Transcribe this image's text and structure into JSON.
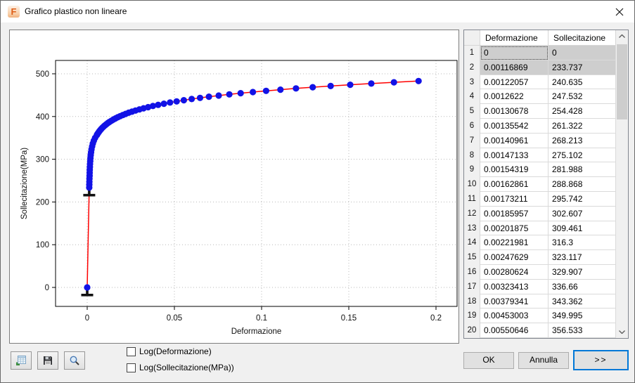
{
  "window": {
    "title": "Grafico plastico non lineare",
    "app_icon_glyph": "F"
  },
  "chart_data": {
    "type": "line",
    "title": "",
    "xlabel": "Deformazione",
    "ylabel": "Sollecitazione(MPa)",
    "x_ticks": [
      0,
      0.05,
      0.1,
      0.15,
      0.2
    ],
    "y_ticks": [
      0,
      100,
      200,
      300,
      400,
      500
    ],
    "xlim": [
      -0.018,
      0.212
    ],
    "ylim": [
      -44,
      531
    ],
    "grid": true,
    "legend": false,
    "line_color": "#ff0000",
    "marker_color": "#1212e6",
    "selected_marker_color": "#111111",
    "points": [
      [
        0,
        0
      ],
      [
        0.00116869,
        233.737
      ],
      [
        0.00122057,
        240.635
      ],
      [
        0.0012622,
        247.532
      ],
      [
        0.00130678,
        254.428
      ],
      [
        0.00135542,
        261.322
      ],
      [
        0.00140961,
        268.213
      ],
      [
        0.00147133,
        275.102
      ],
      [
        0.00154319,
        281.988
      ],
      [
        0.00162861,
        288.868
      ],
      [
        0.00173211,
        295.742
      ],
      [
        0.00185957,
        302.607
      ],
      [
        0.00201875,
        309.461
      ],
      [
        0.00221981,
        316.3
      ],
      [
        0.00247629,
        323.117
      ],
      [
        0.00280624,
        329.907
      ],
      [
        0.00323413,
        336.66
      ],
      [
        0.00379341,
        343.362
      ],
      [
        0.00453003,
        349.995
      ],
      [
        0.00550646,
        356.533
      ],
      [
        0.0059,
        359.2
      ],
      [
        0.0064,
        362.3
      ],
      [
        0.0069,
        365.2
      ],
      [
        0.0075,
        368.3
      ],
      [
        0.0081,
        371.1
      ],
      [
        0.0087,
        373.7
      ],
      [
        0.0094,
        376.5
      ],
      [
        0.0102,
        379.3
      ],
      [
        0.011,
        382
      ],
      [
        0.0119,
        384.8
      ],
      [
        0.0128,
        387.3
      ],
      [
        0.0139,
        390.2
      ],
      [
        0.015,
        392.9
      ],
      [
        0.0162,
        395.5
      ],
      [
        0.0175,
        398.2
      ],
      [
        0.0189,
        400.8
      ],
      [
        0.0204,
        403.5
      ],
      [
        0.022,
        406.1
      ],
      [
        0.0238,
        408.8
      ],
      [
        0.0257,
        411.4
      ],
      [
        0.0277,
        414
      ],
      [
        0.0299,
        416.6
      ],
      [
        0.0323,
        419.3
      ],
      [
        0.0349,
        421.9
      ],
      [
        0.0377,
        424.6
      ],
      [
        0.0407,
        427.3
      ],
      [
        0.044,
        430
      ],
      [
        0.0475,
        432.7
      ],
      [
        0.0513,
        435.4
      ],
      [
        0.0554,
        438.1
      ],
      [
        0.0599,
        440.9
      ],
      [
        0.0647,
        443.6
      ],
      [
        0.0698,
        446.3
      ],
      [
        0.0754,
        449
      ],
      [
        0.0815,
        451.8
      ],
      [
        0.088,
        454.6
      ],
      [
        0.095,
        457.3
      ],
      [
        0.1026,
        460.1
      ],
      [
        0.1108,
        462.9
      ],
      [
        0.1197,
        465.8
      ],
      [
        0.1293,
        468.6
      ],
      [
        0.1396,
        471.4
      ],
      [
        0.1508,
        474.3
      ],
      [
        0.1629,
        477.2
      ],
      [
        0.1759,
        480.1
      ],
      [
        0.19,
        483
      ]
    ],
    "selected_points": [
      [
        0,
        0
      ],
      [
        0.00116869,
        233.737
      ]
    ]
  },
  "table": {
    "columns": [
      "Deformazione",
      "Sollecitazione"
    ],
    "rows": [
      [
        "0",
        "0"
      ],
      [
        "0.00116869",
        "233.737"
      ],
      [
        "0.00122057",
        "240.635"
      ],
      [
        "0.0012622",
        "247.532"
      ],
      [
        "0.00130678",
        "254.428"
      ],
      [
        "0.00135542",
        "261.322"
      ],
      [
        "0.00140961",
        "268.213"
      ],
      [
        "0.00147133",
        "275.102"
      ],
      [
        "0.00154319",
        "281.988"
      ],
      [
        "0.00162861",
        "288.868"
      ],
      [
        "0.00173211",
        "295.742"
      ],
      [
        "0.00185957",
        "302.607"
      ],
      [
        "0.00201875",
        "309.461"
      ],
      [
        "0.00221981",
        "316.3"
      ],
      [
        "0.00247629",
        "323.117"
      ],
      [
        "0.00280624",
        "329.907"
      ],
      [
        "0.00323413",
        "336.66"
      ],
      [
        "0.00379341",
        "343.362"
      ],
      [
        "0.00453003",
        "349.995"
      ],
      [
        "0.00550646",
        "356.533"
      ]
    ],
    "selected_rows": [
      0,
      1
    ],
    "focus_cell": [
      0,
      0
    ]
  },
  "toolbar": {
    "icons": [
      "import-table-icon",
      "save-icon",
      "zoom-icon"
    ]
  },
  "footer": {
    "checkboxes": [
      {
        "label": "Log(Deformazione)",
        "checked": false
      },
      {
        "label": "Log(Sollecitazione(MPa))",
        "checked": false
      }
    ],
    "buttons": {
      "ok": "OK",
      "cancel": "Annulla",
      "more": ">>"
    }
  }
}
